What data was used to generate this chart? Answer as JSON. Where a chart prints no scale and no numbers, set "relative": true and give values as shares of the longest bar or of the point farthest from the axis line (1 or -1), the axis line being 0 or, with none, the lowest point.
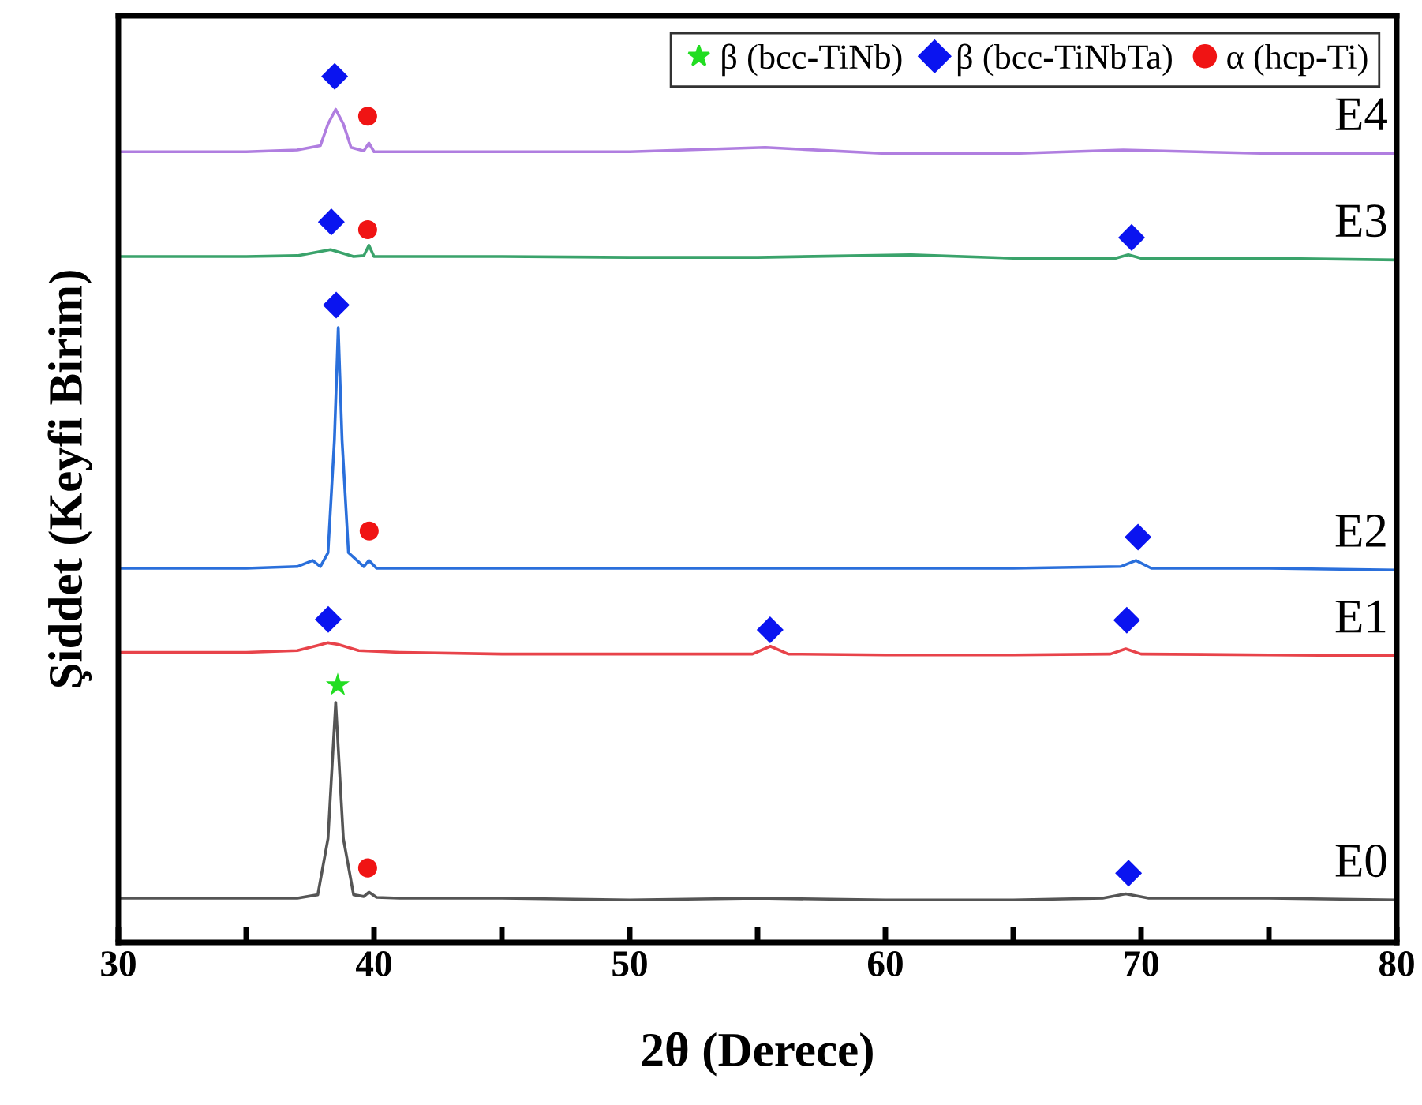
{
  "chart_data": {
    "type": "line",
    "relative": true,
    "xlabel": "2θ (Derece)",
    "ylabel": "Şiddet (Keyfi Birim)",
    "xlim": [
      30,
      80
    ],
    "xticks": [
      30,
      {
        "value": 35,
        "label": null
      },
      40,
      {
        "value": 45,
        "label": null
      },
      50,
      {
        "value": 55,
        "label": null
      },
      60,
      {
        "value": 65,
        "label": null
      },
      70,
      {
        "value": 75,
        "label": null
      },
      80
    ],
    "tick_labels": "x",
    "grid": false,
    "legend": "top right",
    "series": [
      {
        "name": "E0",
        "color": "#555555",
        "x": [
          30,
          35,
          37,
          37.8,
          38.2,
          38.5,
          38.8,
          39.2,
          39.6,
          39.8,
          40.1,
          41,
          45,
          50,
          55,
          60,
          65,
          68.5,
          69.4,
          70.3,
          75,
          80
        ],
        "values": [
          0.051,
          0.051,
          0.051,
          0.055,
          0.12,
          0.277,
          0.12,
          0.055,
          0.053,
          0.058,
          0.052,
          0.051,
          0.051,
          0.049,
          0.051,
          0.049,
          0.049,
          0.051,
          0.056,
          0.051,
          0.051,
          0.049
        ]
      },
      {
        "name": "E1",
        "color": "#e8434a",
        "x": [
          30,
          35,
          37,
          37.8,
          38.2,
          38.6,
          39.4,
          41,
          45,
          50,
          54.8,
          55.5,
          56.2,
          60,
          65,
          68.8,
          69.4,
          70,
          75,
          80
        ],
        "values": [
          0.335,
          0.335,
          0.337,
          0.343,
          0.346,
          0.344,
          0.337,
          0.335,
          0.333,
          0.333,
          0.333,
          0.342,
          0.333,
          0.332,
          0.332,
          0.333,
          0.339,
          0.333,
          0.332,
          0.331
        ]
      },
      {
        "name": "E2",
        "color": "#2a6fdb",
        "x": [
          30,
          35,
          37,
          37.6,
          37.9,
          38.2,
          38.45,
          38.6,
          38.75,
          39.0,
          39.6,
          39.8,
          40.1,
          41,
          45,
          50,
          55,
          60,
          65,
          69.2,
          69.8,
          70.4,
          75,
          80
        ],
        "values": [
          0.432,
          0.432,
          0.434,
          0.441,
          0.434,
          0.45,
          0.58,
          0.71,
          0.58,
          0.45,
          0.434,
          0.441,
          0.432,
          0.432,
          0.432,
          0.432,
          0.432,
          0.432,
          0.432,
          0.434,
          0.441,
          0.432,
          0.432,
          0.43
        ]
      },
      {
        "name": "E3",
        "color": "#3aa36b",
        "x": [
          30,
          35,
          37,
          38.3,
          39.2,
          39.6,
          39.8,
          40.0,
          41,
          45,
          50,
          55,
          61,
          65,
          69.0,
          69.5,
          70.0,
          75,
          80
        ],
        "values": [
          0.792,
          0.792,
          0.793,
          0.8,
          0.792,
          0.793,
          0.805,
          0.792,
          0.792,
          0.792,
          0.791,
          0.791,
          0.794,
          0.79,
          0.79,
          0.794,
          0.79,
          0.79,
          0.788
        ]
      },
      {
        "name": "E4",
        "color": "#b07ee0",
        "x": [
          30,
          35,
          37,
          37.9,
          38.2,
          38.5,
          38.8,
          39.1,
          39.6,
          39.8,
          40.0,
          41,
          45,
          50,
          55.3,
          60,
          65,
          69.3,
          75,
          80
        ],
        "values": [
          0.913,
          0.913,
          0.915,
          0.92,
          0.945,
          0.962,
          0.945,
          0.918,
          0.914,
          0.923,
          0.913,
          0.913,
          0.913,
          0.913,
          0.918,
          0.911,
          0.911,
          0.915,
          0.911,
          0.911
        ]
      },
      {
        "name": "β (bcc-TiNb)",
        "type": "scatter",
        "marker": "star",
        "color": "#22dd22",
        "x": [
          38.58
        ],
        "values": [
          0.297
        ]
      },
      {
        "name": "β (bcc-TiNbTa)",
        "type": "scatter",
        "marker": "diamond",
        "color": "#0a14f0",
        "x": [
          38.46,
          38.33,
          69.63,
          38.52,
          69.88,
          38.21,
          55.49,
          69.44,
          69.51
        ],
        "values": [
          1.0,
          0.832,
          0.814,
          0.736,
          0.468,
          0.373,
          0.361,
          0.372,
          0.08
        ]
      },
      {
        "name": "α (hcp-Ti)",
        "type": "scatter",
        "marker": "circle",
        "color": "#f01414",
        "x": [
          39.75,
          39.75,
          39.81,
          39.75
        ],
        "values": [
          0.954,
          0.823,
          0.475,
          0.086
        ]
      }
    ]
  }
}
